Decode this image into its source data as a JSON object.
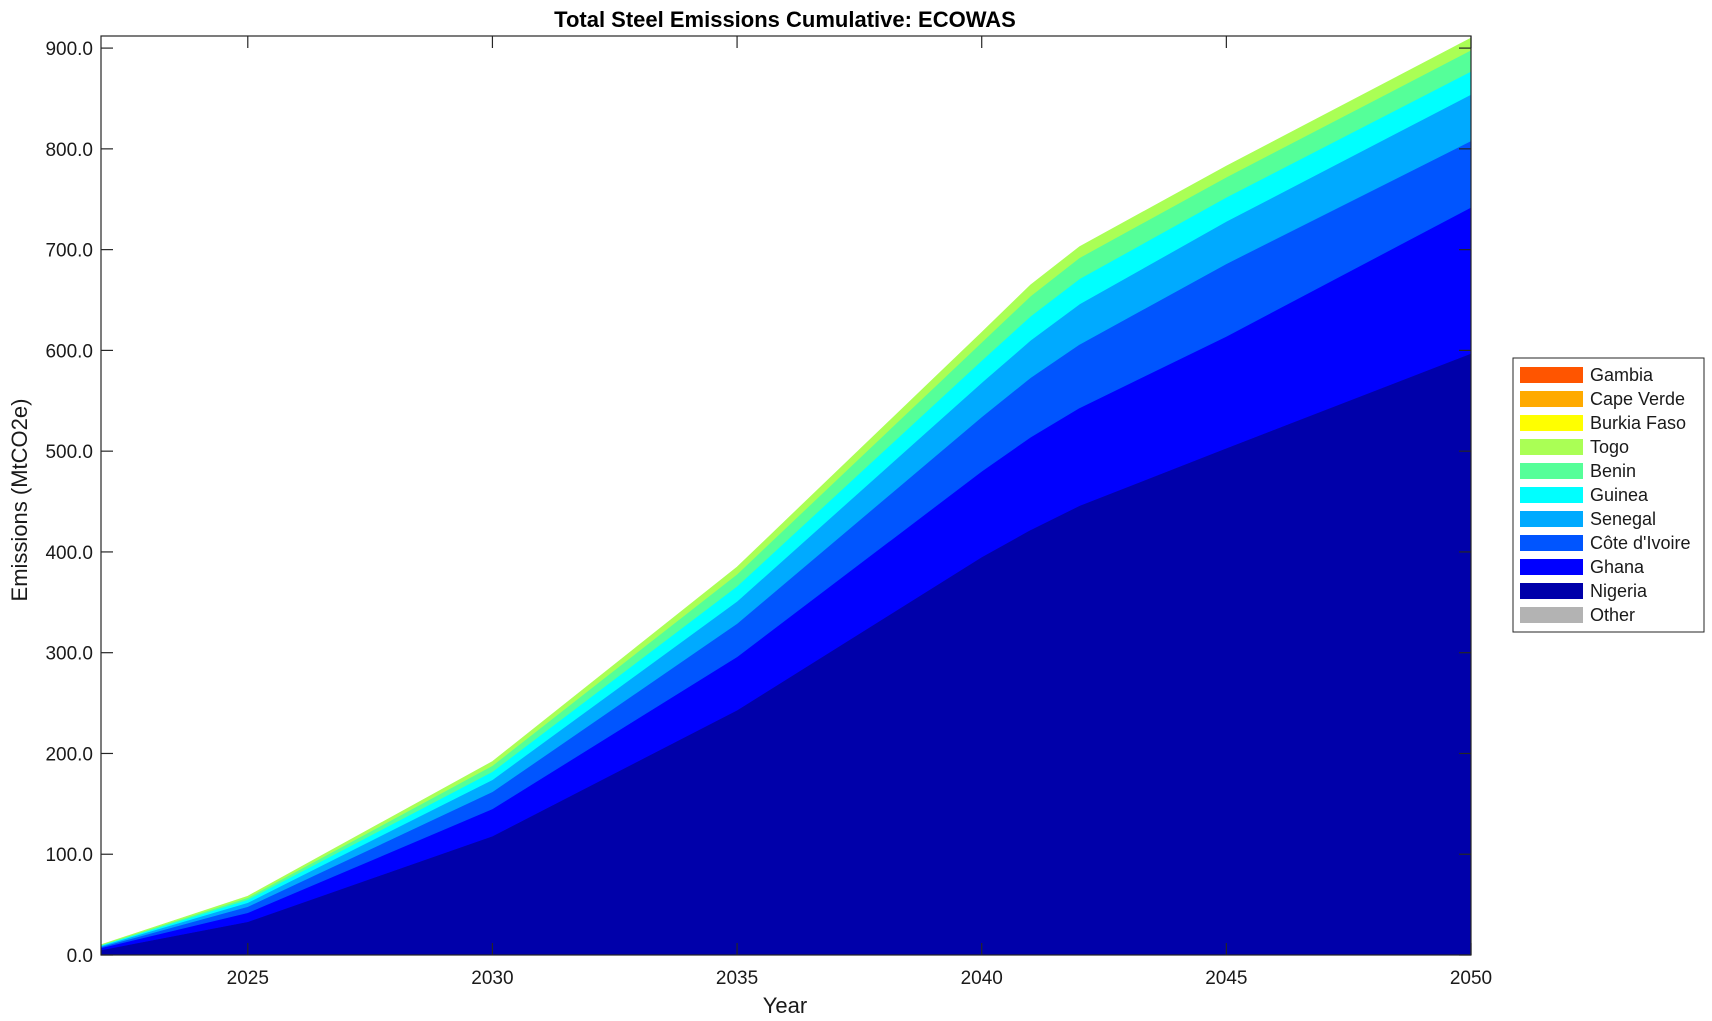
{
  "chart_data": {
    "type": "area",
    "stacked": true,
    "title": "Total Steel Emissions Cumulative: ECOWAS",
    "xlabel": "Year",
    "ylabel": "Emissions (MtCO2e)",
    "xlim": [
      2022,
      2050
    ],
    "ylim": [
      0,
      912
    ],
    "xticks": [
      2025,
      2030,
      2035,
      2040,
      2045,
      2050
    ],
    "yticks": [
      0,
      100,
      200,
      300,
      400,
      500,
      600,
      700,
      800,
      900
    ],
    "ytick_labels": [
      "0.0",
      "100.0",
      "200.0",
      "300.0",
      "400.0",
      "500.0",
      "600.0",
      "700.0",
      "800.0",
      "900.0"
    ],
    "legend_position": "right",
    "x": [
      2022,
      2025,
      2030,
      2035,
      2040,
      2041,
      2042,
      2045,
      2050
    ],
    "series": [
      {
        "name": "Nigeria",
        "color": "#0000AA",
        "values": [
          5,
          33,
          118,
          243,
          395,
          422,
          446,
          503,
          597
        ]
      },
      {
        "name": "Ghana",
        "color": "#0000FF",
        "values": [
          2,
          9,
          27,
          53,
          85,
          92,
          97,
          111,
          145
        ]
      },
      {
        "name": "Côte d'Ivoire",
        "color": "#0055FF",
        "values": [
          1,
          6,
          17,
          33,
          54,
          59,
          63,
          72,
          66
        ]
      },
      {
        "name": "Senegal",
        "color": "#00AAFF",
        "values": [
          1,
          4,
          12,
          22,
          34,
          37,
          40,
          42,
          46
        ]
      },
      {
        "name": "Guinea",
        "color": "#00FFFF",
        "values": [
          0.5,
          3,
          8,
          15,
          22,
          24,
          25,
          24,
          23
        ]
      },
      {
        "name": "Benin",
        "color": "#55FF99",
        "values": [
          0.5,
          2,
          6,
          12,
          18,
          20,
          21,
          20,
          21
        ]
      },
      {
        "name": "Togo",
        "color": "#AAFF55",
        "values": [
          0.3,
          1.5,
          4,
          7,
          10,
          11,
          11,
          11,
          12
        ]
      },
      {
        "name": "Burkia Faso",
        "color": "#FFFF00",
        "values": [
          0,
          0,
          0,
          0,
          0,
          0,
          0,
          0,
          0
        ]
      },
      {
        "name": "Cape Verde",
        "color": "#FFAA00",
        "values": [
          0,
          0,
          0,
          0,
          0,
          0,
          0,
          0,
          0
        ]
      },
      {
        "name": "Gambia",
        "color": "#FF5500",
        "values": [
          0,
          0,
          0,
          0,
          0,
          0,
          0,
          0,
          0
        ]
      },
      {
        "name": "Other",
        "color": "#B3B3B3",
        "values": [
          0,
          0,
          0,
          0,
          0,
          0,
          0,
          0,
          0
        ]
      }
    ],
    "legend_order": [
      "Gambia",
      "Cape Verde",
      "Burkia Faso",
      "Togo",
      "Benin",
      "Guinea",
      "Senegal",
      "Côte d'Ivoire",
      "Ghana",
      "Nigeria",
      "Other"
    ]
  }
}
